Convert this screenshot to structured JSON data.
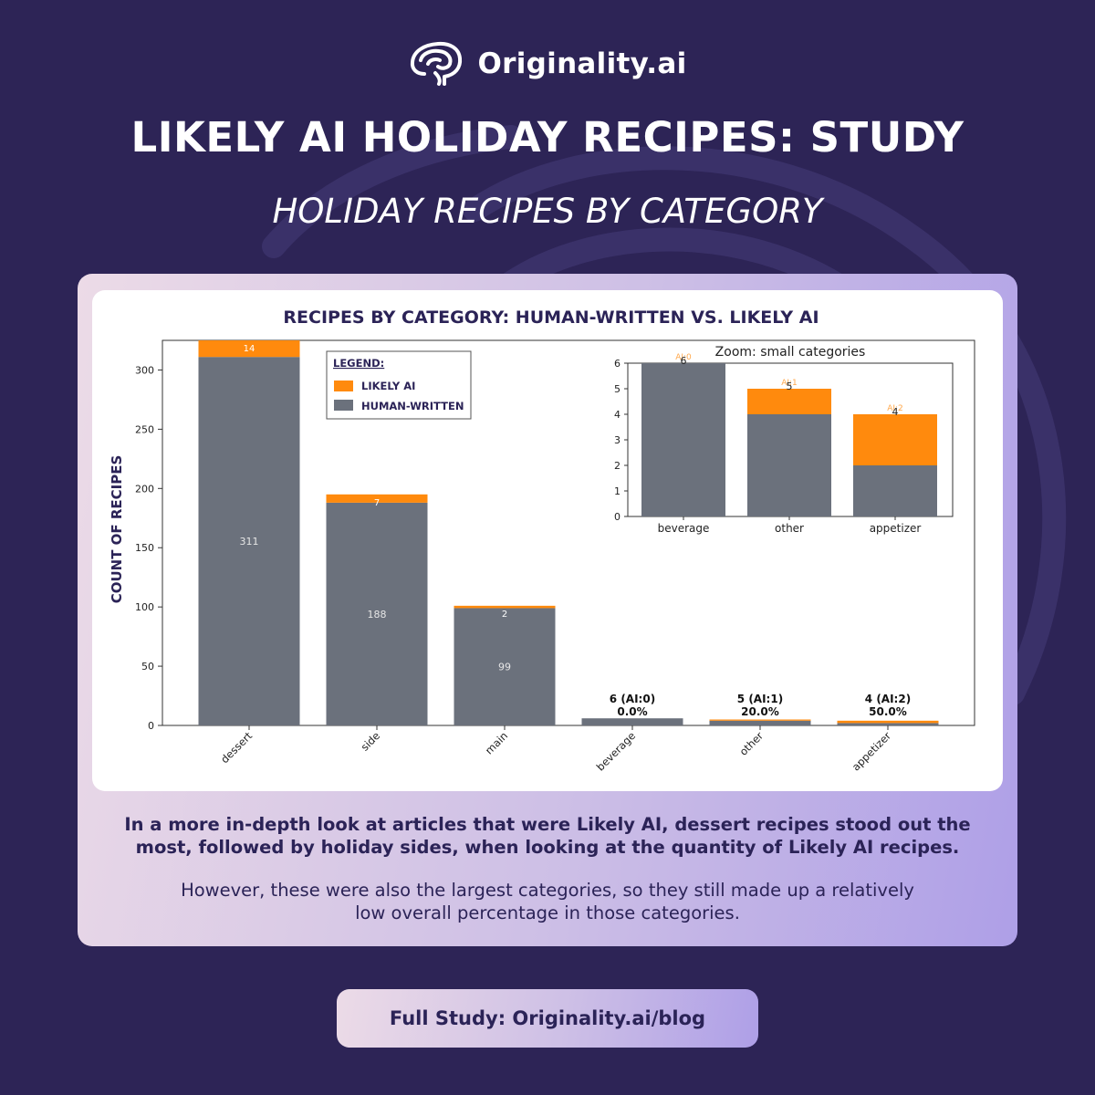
{
  "brand": {
    "name": "Originality.ai"
  },
  "header": {
    "title": "LIKELY AI HOLIDAY RECIPES: STUDY",
    "subtitle": "HOLIDAY RECIPES BY CATEGORY"
  },
  "colors": {
    "likely_ai": "#ff8a0d",
    "human_written": "#6b717c",
    "navy": "#2b2357",
    "background": "#2d2456"
  },
  "chart_data": [
    {
      "type": "bar",
      "stacked": true,
      "title": "RECIPES BY CATEGORY: HUMAN-WRITTEN VS. LIKELY AI",
      "xlabel": "",
      "ylabel": "COUNT OF RECIPES",
      "ylim": [
        0,
        325
      ],
      "yticks": [
        0,
        50,
        100,
        150,
        200,
        250,
        300
      ],
      "categories": [
        "dessert",
        "side",
        "main",
        "beverage",
        "other",
        "appetizer"
      ],
      "series": [
        {
          "name": "HUMAN-WRITTEN",
          "values": [
            311,
            188,
            99,
            6,
            4,
            2
          ]
        },
        {
          "name": "LIKELY AI",
          "values": [
            14,
            7,
            2,
            0,
            1,
            2
          ]
        }
      ],
      "legend": {
        "title": "LEGEND:",
        "placement": "top-center",
        "entries": [
          "LIKELY AI",
          "HUMAN-WRITTEN"
        ]
      },
      "annotations": [
        {
          "category": "beverage",
          "line1": "6 (AI:0)",
          "line2": "0.0%"
        },
        {
          "category": "other",
          "line1": "5 (AI:1)",
          "line2": "20.0%"
        },
        {
          "category": "appetizer",
          "line1": "4 (AI:2)",
          "line2": "50.0%"
        }
      ],
      "grid": false
    },
    {
      "type": "bar",
      "stacked": true,
      "title": "Zoom: small categories",
      "placement": "inset top-right",
      "ylim": [
        0,
        6
      ],
      "yticks": [
        0,
        1,
        2,
        3,
        4,
        5,
        6
      ],
      "categories": [
        "beverage",
        "other",
        "appetizer"
      ],
      "series": [
        {
          "name": "HUMAN-WRITTEN",
          "values": [
            6,
            4,
            2
          ]
        },
        {
          "name": "LIKELY AI",
          "values": [
            0,
            1,
            2
          ]
        }
      ],
      "totals": [
        6,
        5,
        4
      ],
      "ai_labels": [
        "AI:0",
        "AI:1",
        "AI:2"
      ],
      "grid": false
    }
  ],
  "body": {
    "paragraph_bold": "In a more in-depth look at articles that were Likely AI, dessert recipes stood out the most, followed by holiday sides, when looking at the quantity of Likely AI recipes.",
    "paragraph": "However, these were also the largest categories, so they still made up a relatively low overall percentage in those categories."
  },
  "cta": {
    "label": "Full Study: Originality.ai/blog"
  }
}
